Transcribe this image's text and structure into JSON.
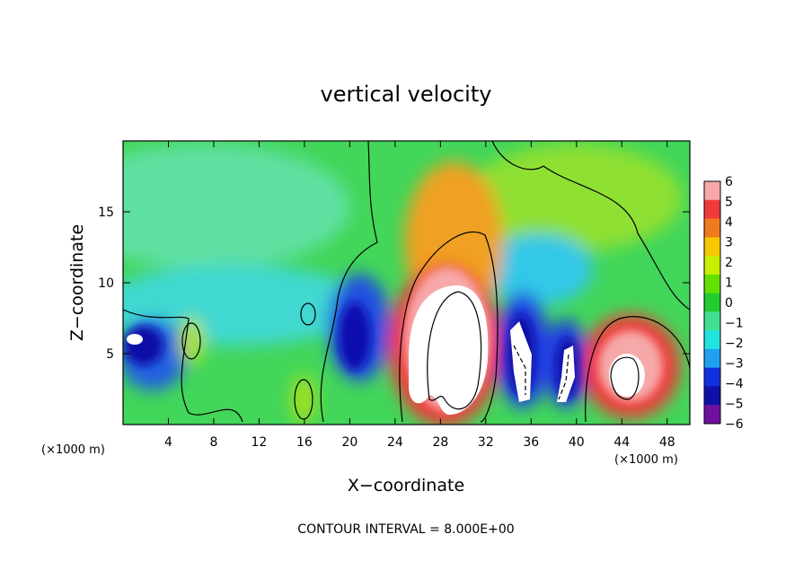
{
  "chart_data": {
    "type": "heatmap",
    "title": "vertical velocity",
    "xlabel": "X−coordinate",
    "ylabel": "Z−coordinate",
    "x_unit_left": "(×1000 m)",
    "x_unit_right": "(×1000 m)",
    "xlim": [
      0,
      50
    ],
    "ylim": [
      0,
      20
    ],
    "x_ticks": [
      4,
      8,
      12,
      16,
      20,
      24,
      28,
      32,
      36,
      40,
      44,
      48
    ],
    "y_ticks": [
      5,
      10,
      15
    ],
    "colorbar": {
      "ticks": [
        "6",
        "5",
        "4",
        "3",
        "2",
        "1",
        "0",
        "−1",
        "−2",
        "−3",
        "−4",
        "−5",
        "−6"
      ],
      "colors": [
        "#f7a8a8",
        "#f03a3a",
        "#f07a20",
        "#f5c800",
        "#c8ef00",
        "#64e000",
        "#20cc30",
        "#40e090",
        "#20e4e0",
        "#20a0f0",
        "#1030e0",
        "#1010a8",
        "#7010a0"
      ]
    },
    "features": [
      {
        "type": "updraft",
        "x": 29,
        "z": 5,
        "peak": 6
      },
      {
        "type": "updraft",
        "x": 44.5,
        "z": 4.5,
        "peak": 6
      },
      {
        "type": "downdraft",
        "x": 35,
        "z": 4.5,
        "peak": -6
      },
      {
        "type": "downdraft",
        "x": 39,
        "z": 4.5,
        "peak": -6
      },
      {
        "type": "downdraft",
        "x": 2,
        "z": 5.5,
        "peak": -6
      },
      {
        "type": "downdraft",
        "x": 20.5,
        "z": 6,
        "peak": -5
      }
    ],
    "annotation": "CONTOUR INTERVAL = 8.000E+00"
  }
}
